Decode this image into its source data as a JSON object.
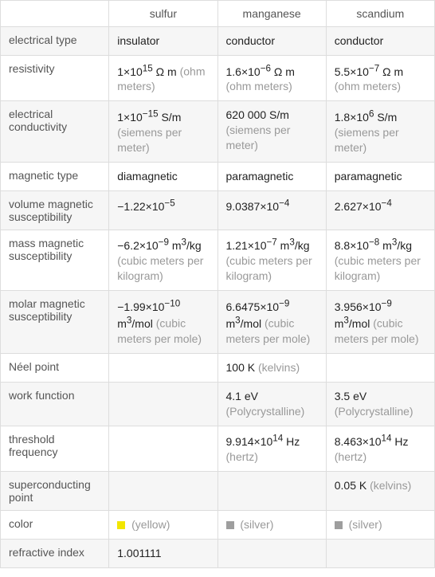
{
  "columns": [
    {
      "key": "label",
      "header": ""
    },
    {
      "key": "sulfur",
      "header": "sulfur"
    },
    {
      "key": "manganese",
      "header": "manganese"
    },
    {
      "key": "scandium",
      "header": "scandium"
    }
  ],
  "rows": [
    {
      "label": "electrical type",
      "sulfur": {
        "value": "insulator",
        "unit": ""
      },
      "manganese": {
        "value": "conductor",
        "unit": ""
      },
      "scandium": {
        "value": "conductor",
        "unit": ""
      }
    },
    {
      "label": "resistivity",
      "sulfur": {
        "value_html": "1×10<sup>15</sup> Ω m",
        "unit": "(ohm meters)"
      },
      "manganese": {
        "value_html": "1.6×10<sup>−6</sup> Ω m",
        "unit": "(ohm meters)"
      },
      "scandium": {
        "value_html": "5.5×10<sup>−7</sup> Ω m",
        "unit": "(ohm meters)"
      }
    },
    {
      "label": "electrical conductivity",
      "sulfur": {
        "value_html": "1×10<sup>−15</sup> S/m",
        "unit": "(siemens per meter)"
      },
      "manganese": {
        "value": "620 000 S/m",
        "unit": "(siemens per meter)"
      },
      "scandium": {
        "value_html": "1.8×10<sup>6</sup> S/m",
        "unit": "(siemens per meter)"
      }
    },
    {
      "label": "magnetic type",
      "sulfur": {
        "value": "diamagnetic",
        "unit": ""
      },
      "manganese": {
        "value": "paramagnetic",
        "unit": ""
      },
      "scandium": {
        "value": "paramagnetic",
        "unit": ""
      }
    },
    {
      "label": "volume magnetic susceptibility",
      "sulfur": {
        "value_html": "−1.22×10<sup>−5</sup>",
        "unit": ""
      },
      "manganese": {
        "value_html": "9.0387×10<sup>−4</sup>",
        "unit": ""
      },
      "scandium": {
        "value_html": "2.627×10<sup>−4</sup>",
        "unit": ""
      }
    },
    {
      "label": "mass magnetic susceptibility",
      "sulfur": {
        "value_html": "−6.2×10<sup>−9</sup> m<sup>3</sup>/kg",
        "unit": "(cubic meters per kilogram)"
      },
      "manganese": {
        "value_html": "1.21×10<sup>−7</sup> m<sup>3</sup>/kg",
        "unit": "(cubic meters per kilogram)"
      },
      "scandium": {
        "value_html": "8.8×10<sup>−8</sup> m<sup>3</sup>/kg",
        "unit": "(cubic meters per kilogram)"
      }
    },
    {
      "label": "molar magnetic susceptibility",
      "sulfur": {
        "value_html": "−1.99×10<sup>−10</sup> m<sup>3</sup>/mol",
        "unit": "(cubic meters per mole)"
      },
      "manganese": {
        "value_html": "6.6475×10<sup>−9</sup> m<sup>3</sup>/mol",
        "unit": "(cubic meters per mole)"
      },
      "scandium": {
        "value_html": "3.956×10<sup>−9</sup> m<sup>3</sup>/mol",
        "unit": "(cubic meters per mole)"
      }
    },
    {
      "label": "Néel point",
      "sulfur": {
        "value": "",
        "unit": ""
      },
      "manganese": {
        "value": "100 K",
        "unit": "(kelvins)"
      },
      "scandium": {
        "value": "",
        "unit": ""
      }
    },
    {
      "label": "work function",
      "sulfur": {
        "value": "",
        "unit": ""
      },
      "manganese": {
        "value": "4.1 eV",
        "unit": "(Polycrystalline)"
      },
      "scandium": {
        "value": "3.5 eV",
        "unit": "(Polycrystalline)"
      }
    },
    {
      "label": "threshold frequency",
      "sulfur": {
        "value": "",
        "unit": ""
      },
      "manganese": {
        "value_html": "9.914×10<sup>14</sup> Hz",
        "unit": "(hertz)"
      },
      "scandium": {
        "value_html": "8.463×10<sup>14</sup> Hz",
        "unit": "(hertz)"
      }
    },
    {
      "label": "superconducting point",
      "sulfur": {
        "value": "",
        "unit": ""
      },
      "manganese": {
        "value": "",
        "unit": ""
      },
      "scandium": {
        "value": "0.05 K",
        "unit": "(kelvins)"
      }
    },
    {
      "label": "color",
      "sulfur": {
        "swatch": "#f2e600",
        "unit": "(yellow)"
      },
      "manganese": {
        "swatch": "#9e9e9e",
        "unit": "(silver)"
      },
      "scandium": {
        "swatch": "#9e9e9e",
        "unit": "(silver)"
      }
    },
    {
      "label": "refractive index",
      "sulfur": {
        "value": "1.001111",
        "unit": ""
      },
      "manganese": {
        "value": "",
        "unit": ""
      },
      "scandium": {
        "value": "",
        "unit": ""
      }
    }
  ],
  "style": {
    "border_color": "#dddddd",
    "alt_row_bg": "#f6f6f6",
    "unit_color": "#999999",
    "text_color": "#333333",
    "label_color": "#555555"
  }
}
